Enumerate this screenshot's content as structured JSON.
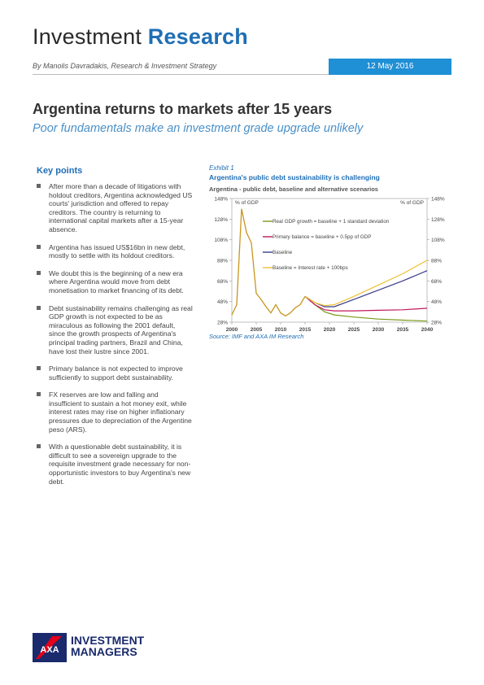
{
  "header": {
    "title_plain": "Investment",
    "title_accent": "Research",
    "byline": "By Manolis Davradakis, Research & Investment Strategy",
    "date": "12 May 2016"
  },
  "article": {
    "title": "Argentina returns to markets after 15 years",
    "subtitle": "Poor fundamentals make an investment grade upgrade unlikely"
  },
  "key_points": {
    "heading": "Key points",
    "items": [
      "After more than a decade of litigations with holdout creditors, Argentina acknowledged US courts' jurisdiction and offered to repay creditors. The country is returning to international capital markets after a 15-year absence.",
      "Argentina has issued US$16bn in new debt, mostly to settle with its holdout creditors.",
      "We doubt this is the beginning of a new era where Argentina would move from debt monetisation to market financing of its debt.",
      "Debt sustainability remains challenging as real GDP growth is not expected to be as miraculous as following the 2001 default, since the growth prospects of Argentina's principal trading partners, Brazil and China, have lost their lustre since 2001.",
      "Primary balance is not expected to improve sufficiently to support debt sustainability.",
      "FX reserves are low and falling and insufficient to sustain a hot money exit, while interest rates may rise on higher inflationary pressures due to depreciation of the Argentine peso (ARS).",
      "With a questionable debt sustainability, it is difficult to see a sovereign upgrade to the requisite investment grade necessary for non-opportunistic investors to buy Argentina's new debt."
    ]
  },
  "exhibit": {
    "label": "Exhibit 1",
    "title": "Argentina's public debt sustainability is challenging",
    "source": "Source: IMF and AXA IM Research"
  },
  "chart_data": {
    "type": "line",
    "subtitle": "Argentina - public debt, baseline and alternative scenarios",
    "ylabel_left": "% of GDP",
    "ylabel_right": "% of GDP",
    "xlim": [
      2000,
      2040
    ],
    "ylim": [
      28,
      148
    ],
    "x_ticks": [
      "2000",
      "2005",
      "2010",
      "2015",
      "2020",
      "2025",
      "2030",
      "2035",
      "2040"
    ],
    "y_ticks": [
      "28%",
      "48%",
      "68%",
      "88%",
      "108%",
      "128%",
      "148%"
    ],
    "legend_placement": "middle-center",
    "history": {
      "x": [
        2000,
        2001,
        2002,
        2003,
        2004,
        2005,
        2006,
        2007,
        2008,
        2009,
        2010,
        2011,
        2012,
        2013,
        2014,
        2015
      ],
      "y": [
        35,
        45,
        138,
        115,
        105,
        56,
        50,
        43,
        37,
        45,
        37,
        34,
        37,
        42,
        45,
        53
      ]
    },
    "series": [
      {
        "name": "Real GDP growth = baseline + 1 standard deviation",
        "color": "#7a9a1a",
        "x": [
          2015,
          2017,
          2019,
          2021,
          2025,
          2030,
          2035,
          2040
        ],
        "y": [
          53,
          45,
          38,
          35,
          33,
          31,
          30,
          29
        ]
      },
      {
        "name": "Primary balance = baseline + 0.5pp of GDP",
        "color": "#c2185b",
        "x": [
          2015,
          2017,
          2019,
          2021,
          2025,
          2030,
          2035,
          2040
        ],
        "y": [
          53,
          45,
          40,
          39,
          39,
          39.5,
          40,
          41.5
        ]
      },
      {
        "name": "Baseline",
        "color": "#3a3a8c",
        "x": [
          2015,
          2017,
          2019,
          2021,
          2025,
          2030,
          2035,
          2040
        ],
        "y": [
          53,
          47,
          43,
          43,
          50,
          59,
          68,
          78
        ]
      },
      {
        "name": "Baseline = Interest rate + 100bps",
        "color": "#f0c030",
        "x": [
          2015,
          2017,
          2019,
          2021,
          2025,
          2030,
          2035,
          2040
        ],
        "y": [
          53,
          47,
          44,
          45,
          53,
          64,
          75,
          88
        ]
      }
    ],
    "history_color": "#c8961e"
  },
  "brand": {
    "logo_letters": "AXA",
    "line1": "INVESTMENT",
    "line2": "MANAGERS",
    "accent": "#1f6eb5",
    "navy": "#1a2a6c",
    "red": "#e2001a"
  }
}
